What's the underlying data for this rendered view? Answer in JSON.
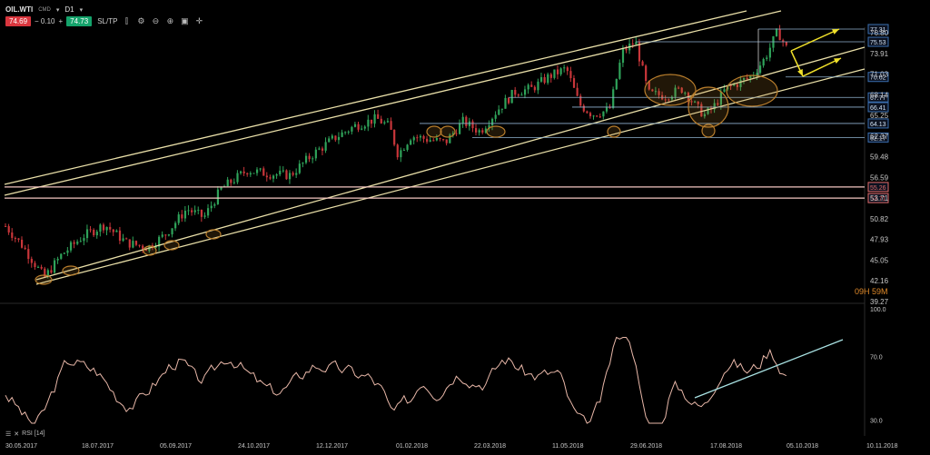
{
  "toolbar": {
    "symbol": "OIL.WTI",
    "type_badge": "CMD",
    "timeframe": "D1",
    "bid": "74.69",
    "change": "− 0.10",
    "plus": "+",
    "ask": "74.73",
    "sltp": "SL/TP",
    "icons": [
      "indicator-icon",
      "settings-icon",
      "zoom-out-icon",
      "zoom-in-icon",
      "layout-icon",
      "crosshair-icon"
    ]
  },
  "timer": {
    "hours": "09",
    "h": "H",
    "minutes": "59",
    "m": "M"
  },
  "rsi_label": "RSI [14]",
  "chart_data": [
    {
      "type": "candlestick",
      "symbol": "OIL.WTI",
      "timeframe": "D1",
      "y_ticks": [
        "76.80",
        "73.91",
        "71.03",
        "68.14",
        "65.25",
        "62.37",
        "59.48",
        "56.59",
        "53.71",
        "50.82",
        "47.93",
        "45.05",
        "42.16",
        "39.27"
      ],
      "ylim": [
        39.27,
        78.0
      ],
      "x_ticks": [
        "30.05.2017",
        "18.07.2017",
        "05.09.2017",
        "24.10.2017",
        "12.12.2017",
        "01.02.2018",
        "22.03.2018",
        "11.05.2018",
        "29.06.2018",
        "17.08.2018",
        "05.10.2018",
        "10.11.2018"
      ],
      "price_path": [
        {
          "x": 0,
          "y": 49.8
        },
        {
          "x": 0.04,
          "y": 47.0
        },
        {
          "x": 0.09,
          "y": 42.6
        },
        {
          "x": 0.13,
          "y": 45.8
        },
        {
          "x": 0.18,
          "y": 48.4
        },
        {
          "x": 0.23,
          "y": 50.0
        },
        {
          "x": 0.28,
          "y": 47.5
        },
        {
          "x": 0.33,
          "y": 46.8
        },
        {
          "x": 0.37,
          "y": 48.6
        },
        {
          "x": 0.42,
          "y": 52.2
        },
        {
          "x": 0.46,
          "y": 51.0
        },
        {
          "x": 0.5,
          "y": 55.0
        },
        {
          "x": 0.56,
          "y": 57.6
        },
        {
          "x": 0.61,
          "y": 57.1
        },
        {
          "x": 0.66,
          "y": 56.9
        },
        {
          "x": 0.71,
          "y": 59.7
        },
        {
          "x": 0.76,
          "y": 62.0
        },
        {
          "x": 0.81,
          "y": 63.8
        },
        {
          "x": 0.86,
          "y": 64.8
        },
        {
          "x": 0.89,
          "y": 63.7
        },
        {
          "x": 0.91,
          "y": 59.8
        },
        {
          "x": 0.94,
          "y": 62.4
        },
        {
          "x": 0.98,
          "y": 61.9
        },
        {
          "x": 1.02,
          "y": 61.5
        },
        {
          "x": 1.06,
          "y": 64.4
        },
        {
          "x": 1.1,
          "y": 63.0
        },
        {
          "x": 1.14,
          "y": 66.0
        },
        {
          "x": 1.18,
          "y": 68.5
        },
        {
          "x": 1.22,
          "y": 69.0
        },
        {
          "x": 1.26,
          "y": 70.7
        },
        {
          "x": 1.3,
          "y": 71.8
        },
        {
          "x": 1.33,
          "y": 66.8
        },
        {
          "x": 1.36,
          "y": 65.4
        },
        {
          "x": 1.4,
          "y": 66.0
        },
        {
          "x": 1.43,
          "y": 74.1
        },
        {
          "x": 1.46,
          "y": 75.6
        },
        {
          "x": 1.49,
          "y": 68.3
        },
        {
          "x": 1.53,
          "y": 68.0
        },
        {
          "x": 1.57,
          "y": 69.0
        },
        {
          "x": 1.6,
          "y": 66.5
        },
        {
          "x": 1.62,
          "y": 65.3
        },
        {
          "x": 1.64,
          "y": 66.3
        },
        {
          "x": 1.67,
          "y": 69.0
        },
        {
          "x": 1.7,
          "y": 69.8
        },
        {
          "x": 1.73,
          "y": 70.8
        },
        {
          "x": 1.76,
          "y": 73.2
        },
        {
          "x": 1.79,
          "y": 77.0
        },
        {
          "x": 1.81,
          "y": 74.7
        }
      ],
      "price_labels": [
        {
          "text": "77.31",
          "value": 77.31,
          "color": "#3a6fb0"
        },
        {
          "text": "75.53",
          "value": 75.53,
          "color": "#3a6fb0"
        },
        {
          "text": "70.62",
          "value": 70.62,
          "color": "#3a6fb0"
        },
        {
          "text": "67.77",
          "value": 67.77,
          "color": "#3a6fb0"
        },
        {
          "text": "66.41",
          "value": 66.41,
          "color": "#3a6fb0"
        },
        {
          "text": "64.13",
          "value": 64.13,
          "color": "#3a6fb0"
        },
        {
          "text": "62.17",
          "value": 62.17,
          "color": "#3a6fb0"
        },
        {
          "text": "55.26",
          "value": 55.26,
          "color": "#e06b6b"
        },
        {
          "text": "53.71",
          "value": 53.71,
          "color": "#e06b6b"
        }
      ]
    },
    {
      "type": "line",
      "name": "RSI [14]",
      "y_ticks": [
        "100.0",
        "70.0",
        "30.0"
      ],
      "ylim": [
        20,
        100
      ]
    }
  ],
  "colors": {
    "up": "#2fa35a",
    "down": "#c8363a",
    "channel": "#e9dfa8",
    "support_red": "#f2c6c0",
    "level_blue": "#8fb2cf",
    "circle": "#b87d2c",
    "arrow": "#f0e02a",
    "rsi": "#e8b7a8",
    "rsi_trend": "#a9e2e3"
  }
}
